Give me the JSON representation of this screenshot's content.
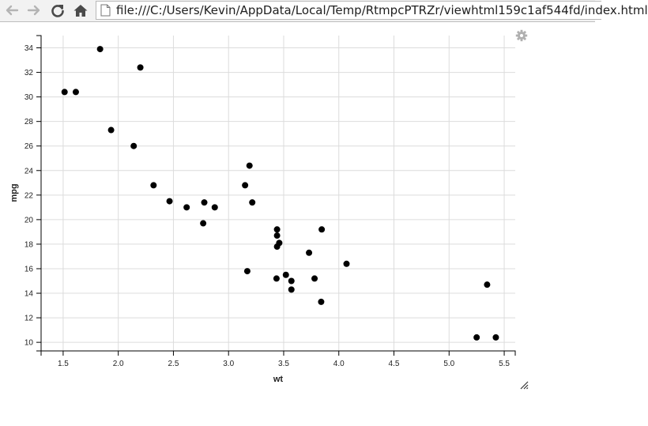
{
  "browser": {
    "url": "file:///C:/Users/Kevin/AppData/Local/Temp/RtmpcPTRZr/viewhtml159c1af544fd/index.html",
    "icons": {
      "back": "arrow-left-icon",
      "forward": "arrow-right-icon",
      "reload": "reload-icon",
      "home": "home-icon",
      "page": "file-page-icon"
    }
  },
  "widget": {
    "settings_icon": "gear-icon",
    "resize_icon": "resize-handle-icon"
  },
  "chart_data": {
    "type": "scatter",
    "xlabel": "wt",
    "ylabel": "mpg",
    "xlim": [
      1.3,
      5.6
    ],
    "ylim": [
      9.3,
      35.0
    ],
    "xticks": [
      "1.5",
      "2.0",
      "2.5",
      "3.0",
      "3.5",
      "4.0",
      "4.5",
      "5.0",
      "5.5"
    ],
    "yticks": [
      "10",
      "12",
      "14",
      "16",
      "18",
      "20",
      "22",
      "24",
      "26",
      "28",
      "30",
      "32",
      "34"
    ],
    "grid": true,
    "point_color": "#000000",
    "points": [
      {
        "x": 2.62,
        "y": 21.0
      },
      {
        "x": 2.875,
        "y": 21.0
      },
      {
        "x": 2.32,
        "y": 22.8
      },
      {
        "x": 3.215,
        "y": 21.4
      },
      {
        "x": 3.44,
        "y": 18.7
      },
      {
        "x": 3.46,
        "y": 18.1
      },
      {
        "x": 3.57,
        "y": 14.3
      },
      {
        "x": 3.19,
        "y": 24.4
      },
      {
        "x": 3.15,
        "y": 22.8
      },
      {
        "x": 3.44,
        "y": 19.2
      },
      {
        "x": 3.44,
        "y": 17.8
      },
      {
        "x": 4.07,
        "y": 16.4
      },
      {
        "x": 3.73,
        "y": 17.3
      },
      {
        "x": 3.78,
        "y": 15.2
      },
      {
        "x": 5.25,
        "y": 10.4
      },
      {
        "x": 5.424,
        "y": 10.4
      },
      {
        "x": 5.345,
        "y": 14.7
      },
      {
        "x": 2.2,
        "y": 32.4
      },
      {
        "x": 1.615,
        "y": 30.4
      },
      {
        "x": 1.835,
        "y": 33.9
      },
      {
        "x": 2.465,
        "y": 21.5
      },
      {
        "x": 3.52,
        "y": 15.5
      },
      {
        "x": 3.435,
        "y": 15.2
      },
      {
        "x": 3.84,
        "y": 13.3
      },
      {
        "x": 3.845,
        "y": 19.2
      },
      {
        "x": 1.935,
        "y": 27.3
      },
      {
        "x": 2.14,
        "y": 26.0
      },
      {
        "x": 1.513,
        "y": 30.4
      },
      {
        "x": 3.17,
        "y": 15.8
      },
      {
        "x": 2.77,
        "y": 19.7
      },
      {
        "x": 3.57,
        "y": 15.0
      },
      {
        "x": 2.78,
        "y": 21.4
      }
    ]
  }
}
